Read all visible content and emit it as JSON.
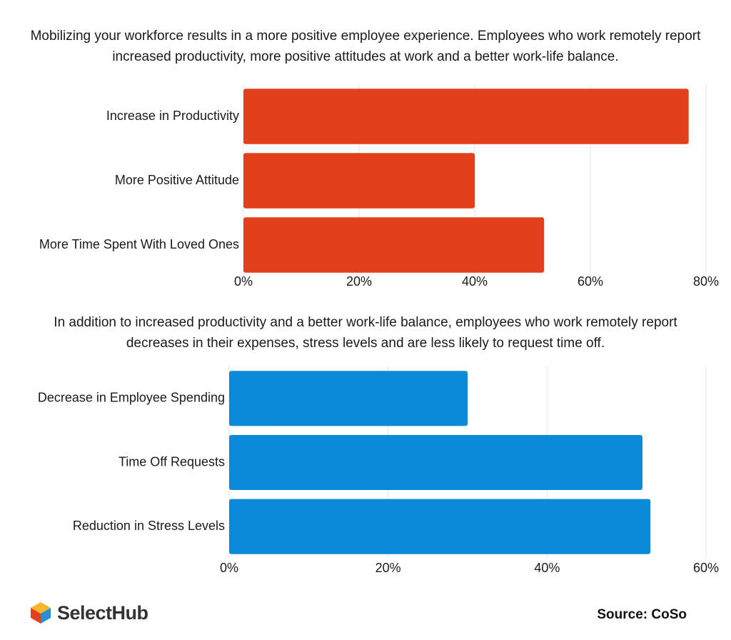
{
  "chart_data": [
    {
      "type": "barh",
      "title": "Mobilizing your workforce results in a more positive employee experience. Employees who work remotely report increased productivity, more positive attitudes at work and a better work-life balance.",
      "categories": [
        "Increase in Productivity",
        "More Positive Attitude",
        "More Time Spent With Loved Ones"
      ],
      "values": [
        77,
        40,
        52
      ],
      "color": "#e2401c",
      "xlim": [
        0,
        80
      ],
      "xticks": [
        {
          "value": 0,
          "label": "0%"
        },
        {
          "value": 20,
          "label": "20%"
        },
        {
          "value": 40,
          "label": "40%"
        },
        {
          "value": 60,
          "label": "60%"
        },
        {
          "value": 80,
          "label": "80%"
        }
      ],
      "grid": true
    },
    {
      "type": "barh",
      "title": "In addition to increased productivity and a better work-life balance, employees who work remotely report decreases in their expenses, stress levels and are less likely to request time off.",
      "categories": [
        "Decrease in Employee Spending",
        "Time Off Requests",
        "Reduction in Stress Levels"
      ],
      "values": [
        30,
        52,
        53
      ],
      "color": "#0a8ad8",
      "xlim": [
        0,
        60
      ],
      "xticks": [
        {
          "value": 0,
          "label": "0%"
        },
        {
          "value": 20,
          "label": "20%"
        },
        {
          "value": 40,
          "label": "40%"
        },
        {
          "value": 60,
          "label": "60%"
        }
      ],
      "grid": true
    }
  ],
  "logo": "SelectHub",
  "source": "Source: CoSo"
}
